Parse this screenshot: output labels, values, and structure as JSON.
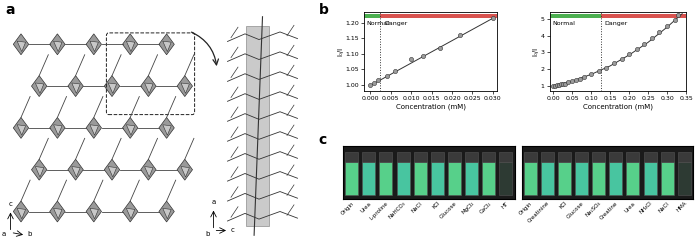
{
  "panel_labels": [
    "a",
    "b",
    "c"
  ],
  "diagram": {
    "left_axes": [
      "c",
      "a",
      "b"
    ],
    "right_axes": [
      "a",
      "b",
      "c"
    ]
  },
  "chart_data": [
    {
      "type": "scatter",
      "x_label": "Concentration (mM)",
      "y_label": "I₀/I",
      "series": [
        {
          "type": "scatter",
          "marker": "circle",
          "x": [
            0.0,
            0.001,
            0.002,
            0.004,
            0.006,
            0.01,
            0.013,
            0.017,
            0.022,
            0.03
          ],
          "values": [
            1.0,
            1.007,
            1.015,
            1.03,
            1.045,
            1.083,
            1.094,
            1.12,
            1.16,
            1.215
          ]
        },
        {
          "type": "line",
          "line_style": "solid",
          "x": [
            0.0,
            0.03
          ],
          "values": [
            0.998,
            1.215
          ]
        }
      ],
      "threshold": 0.0025,
      "annotations": [
        "Normal",
        "Danger"
      ],
      "xlim": [
        -0.0015,
        0.031
      ],
      "ylim": [
        0.98,
        1.235
      ],
      "xticks": [
        {
          "value": 0.0,
          "label": "0.000"
        },
        {
          "value": 0.005,
          "label": "0.005"
        },
        {
          "value": 0.01,
          "label": "0.010"
        },
        {
          "value": 0.015,
          "label": "0.015"
        },
        {
          "value": 0.02,
          "label": "0.020"
        },
        {
          "value": 0.025,
          "label": "0.025"
        },
        {
          "value": 0.03,
          "label": "0.030"
        }
      ],
      "yticks": [
        {
          "value": 1.0,
          "label": "1.00"
        },
        {
          "value": 1.05,
          "label": "1.05"
        },
        {
          "value": 1.1,
          "label": "1.10"
        },
        {
          "value": 1.15,
          "label": "1.15"
        },
        {
          "value": 1.2,
          "label": "1.20"
        }
      ]
    },
    {
      "type": "scatter",
      "x_label": "Concentration (mM)",
      "y_label": "I₀/I",
      "series": [
        {
          "type": "scatter",
          "marker": "circle",
          "x": [
            0.0,
            0.005,
            0.01,
            0.015,
            0.02,
            0.025,
            0.03,
            0.04,
            0.05,
            0.06,
            0.07,
            0.08,
            0.1,
            0.12,
            0.14,
            0.16,
            0.18,
            0.2,
            0.22,
            0.24,
            0.26,
            0.28,
            0.3,
            0.32,
            0.33
          ],
          "values": [
            1.0,
            1.02,
            1.05,
            1.08,
            1.1,
            1.13,
            1.15,
            1.22,
            1.3,
            1.38,
            1.45,
            1.53,
            1.7,
            1.9,
            2.1,
            2.35,
            2.6,
            2.9,
            3.2,
            3.5,
            3.85,
            4.2,
            4.55,
            4.95,
            5.2
          ]
        },
        {
          "type": "line",
          "line_style": "solid",
          "x": [
            0.0,
            0.05,
            0.1,
            0.15,
            0.2,
            0.25,
            0.3,
            0.34
          ],
          "values": [
            1.0,
            1.3,
            1.7,
            2.2,
            2.85,
            3.6,
            4.5,
            5.3
          ]
        }
      ],
      "threshold": 0.125,
      "annotations": [
        "Normal",
        "Danger"
      ],
      "xlim": [
        -0.01,
        0.35
      ],
      "ylim": [
        0.7,
        5.4
      ],
      "xticks": [
        {
          "value": 0.0,
          "label": "0.00"
        },
        {
          "value": 0.05,
          "label": "0.05"
        },
        {
          "value": 0.1,
          "label": "0.10"
        },
        {
          "value": 0.15,
          "label": "0.15"
        },
        {
          "value": 0.2,
          "label": "0.20"
        },
        {
          "value": 0.25,
          "label": "0.25"
        },
        {
          "value": 0.3,
          "label": "0.30"
        },
        {
          "value": 0.35,
          "label": "0.35"
        }
      ],
      "yticks": [
        1,
        2,
        3,
        4,
        5
      ]
    }
  ],
  "photos": [
    {
      "labels": [
        "Origin",
        "Urea",
        "L-proline",
        "NaHCO₃",
        "NaCl",
        "KCl",
        "Glucose",
        "MgCl₂",
        "CaCl₂",
        "HT"
      ]
    },
    {
      "labels": [
        "Origin",
        "Creatinine",
        "KCl",
        "Glucose",
        "Na₂SO₄",
        "Creatine",
        "Urea",
        "NH₄Cl",
        "NaCl",
        "HMA"
      ]
    }
  ]
}
